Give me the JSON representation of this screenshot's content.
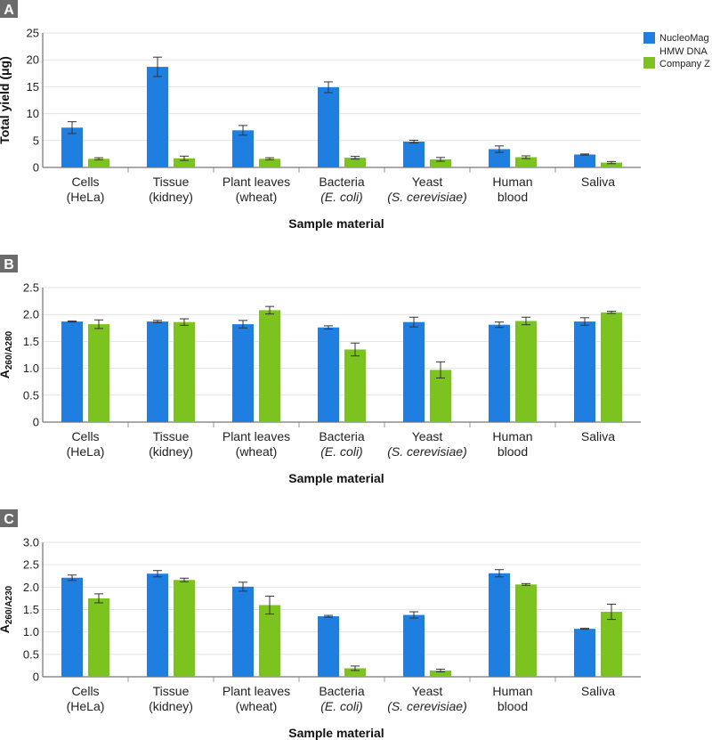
{
  "colors": {
    "nucleomag": "#1f7fe0",
    "companyz": "#7dc31f",
    "grid": "#e3e3e3",
    "panel_bg": "#6b6b6b"
  },
  "legend": {
    "nucleomag_line1": "NucleoMag",
    "nucleomag_line2": "HMW DNA",
    "companyz": "Company Z"
  },
  "chart_data": [
    {
      "panel": "A",
      "type": "bar",
      "title": "",
      "ylabel": "Total yield (μg)",
      "xlabel": "Sample material",
      "ylim": [
        0,
        25
      ],
      "yticks": [
        0,
        5,
        10,
        15,
        20,
        25
      ],
      "ytick_labels": [
        "0",
        "5",
        "10",
        "15",
        "20",
        "25"
      ],
      "grid": true,
      "categories": [
        {
          "line1": "Cells",
          "line2": "(HeLa)",
          "italic2": false
        },
        {
          "line1": "Tissue",
          "line2": "(kidney)",
          "italic2": false
        },
        {
          "line1": "Plant leaves",
          "line2": "(wheat)",
          "italic2": false
        },
        {
          "line1": "Bacteria",
          "line2": "(E. coli)",
          "italic2": true
        },
        {
          "line1": "Yeast",
          "line2": "(S. cerevisiae)",
          "italic2": true
        },
        {
          "line1": "Human",
          "line2": "blood",
          "italic2": false
        },
        {
          "line1": "Saliva",
          "line2": "",
          "italic2": false
        }
      ],
      "series": [
        {
          "name": "NucleoMag HMW DNA",
          "values": [
            7.4,
            18.7,
            6.9,
            14.9,
            4.8,
            3.4,
            2.4
          ],
          "errors": [
            1.1,
            1.8,
            0.9,
            1.0,
            0.25,
            0.6,
            0.1
          ]
        },
        {
          "name": "Company Z",
          "values": [
            1.6,
            1.7,
            1.6,
            1.8,
            1.5,
            1.9,
            0.9
          ],
          "errors": [
            0.2,
            0.4,
            0.2,
            0.25,
            0.35,
            0.25,
            0.2
          ]
        }
      ]
    },
    {
      "panel": "B",
      "type": "bar",
      "title": "",
      "ylabel": "A260/A280",
      "ylabel_main": "A",
      "ylabel_sub": "260/A280",
      "xlabel": "Sample material",
      "ylim": [
        0,
        2.5
      ],
      "yticks": [
        0,
        0.5,
        1.0,
        1.5,
        2.0,
        2.5
      ],
      "ytick_labels": [
        "0",
        "0.5",
        "1.0",
        "1.5",
        "2.0",
        "2.5"
      ],
      "grid": true,
      "categories": [
        {
          "line1": "Cells",
          "line2": "(HeLa)",
          "italic2": false
        },
        {
          "line1": "Tissue",
          "line2": "(kidney)",
          "italic2": false
        },
        {
          "line1": "Plant leaves",
          "line2": "(wheat)",
          "italic2": false
        },
        {
          "line1": "Bacteria",
          "line2": "(E. coli)",
          "italic2": true
        },
        {
          "line1": "Yeast",
          "line2": "(S. cerevisiae)",
          "italic2": true
        },
        {
          "line1": "Human",
          "line2": "blood",
          "italic2": false
        },
        {
          "line1": "Saliva",
          "line2": "",
          "italic2": false
        }
      ],
      "series": [
        {
          "name": "NucleoMag HMW DNA",
          "values": [
            1.87,
            1.87,
            1.82,
            1.76,
            1.86,
            1.81,
            1.87
          ],
          "errors": [
            0.01,
            0.02,
            0.07,
            0.03,
            0.09,
            0.05,
            0.07
          ]
        },
        {
          "name": "Company Z",
          "values": [
            1.82,
            1.86,
            2.08,
            1.35,
            0.97,
            1.88,
            2.04
          ],
          "errors": [
            0.08,
            0.06,
            0.07,
            0.12,
            0.15,
            0.07,
            0.02
          ]
        }
      ]
    },
    {
      "panel": "C",
      "type": "bar",
      "title": "",
      "ylabel": "A260/A230",
      "ylabel_main": "A",
      "ylabel_sub": "260/A230",
      "xlabel": "Sample material",
      "ylim": [
        0,
        3.0
      ],
      "yticks": [
        0,
        0.5,
        1.0,
        1.5,
        2.0,
        2.5,
        3.0
      ],
      "ytick_labels": [
        "0",
        "0.5",
        "1.0",
        "1.5",
        "2.0",
        "2.5",
        "3.0"
      ],
      "grid": true,
      "categories": [
        {
          "line1": "Cells",
          "line2": "(HeLa)",
          "italic2": false
        },
        {
          "line1": "Tissue",
          "line2": "(kidney)",
          "italic2": false
        },
        {
          "line1": "Plant leaves",
          "line2": "(wheat)",
          "italic2": false
        },
        {
          "line1": "Bacteria",
          "line2": "(E. coli)",
          "italic2": true
        },
        {
          "line1": "Yeast",
          "line2": "(S. cerevisiae)",
          "italic2": true
        },
        {
          "line1": "Human",
          "line2": "blood",
          "italic2": false
        },
        {
          "line1": "Saliva",
          "line2": "",
          "italic2": false
        }
      ],
      "series": [
        {
          "name": "NucleoMag HMW DNA",
          "values": [
            2.21,
            2.3,
            2.01,
            1.35,
            1.38,
            2.31,
            1.07
          ],
          "errors": [
            0.06,
            0.07,
            0.1,
            0.02,
            0.07,
            0.08,
            0.01
          ]
        },
        {
          "name": "Company Z",
          "values": [
            1.75,
            2.16,
            1.6,
            0.19,
            0.14,
            2.06,
            1.45
          ],
          "errors": [
            0.1,
            0.04,
            0.2,
            0.05,
            0.03,
            0.02,
            0.17
          ]
        }
      ]
    }
  ]
}
